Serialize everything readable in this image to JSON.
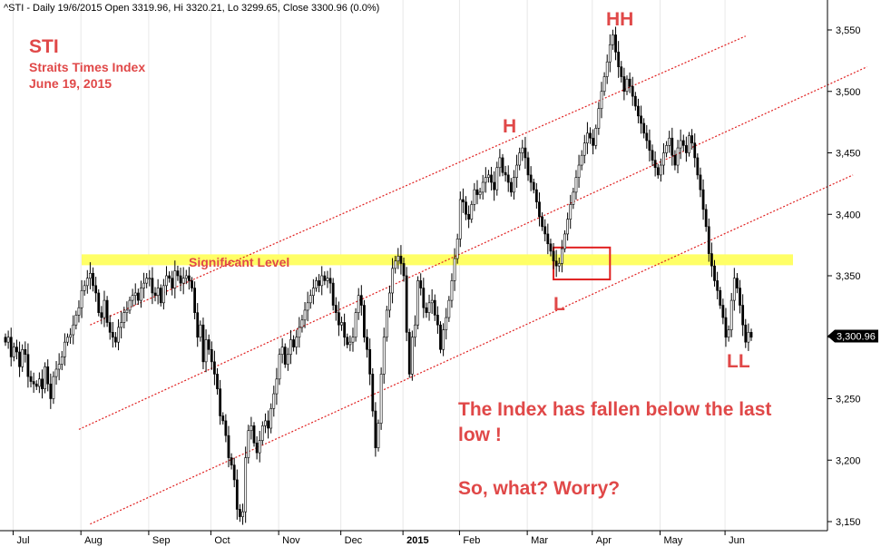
{
  "header": "^STI - Daily 19/6/2015 Open 3319.96, Hi 3320.21, Lo 3299.65, Close 3300.96 (0.0%)",
  "annotations": {
    "title": "STI",
    "subtitle": "Straits Times Index",
    "date": "June 19, 2015",
    "significant_level": "Significant Level",
    "h": "H",
    "hh": "HH",
    "l": "L",
    "ll": "LL",
    "comment_line1": "The Index has fallen below the last",
    "comment_line2": "low !",
    "comment_line3": "So, what? Worry?"
  },
  "last_price_label": "3,300.96",
  "colors": {
    "annotation_red": "#e04848",
    "highlight_yellow": "#ffff66",
    "candle_up": "#ffffff",
    "candle_down": "#000000",
    "channel": "#e02020",
    "grid": "#e8e8e8",
    "price_tag": "#000000"
  },
  "chart_data": {
    "type": "candlestick",
    "ylim": [
      3140,
      3570
    ],
    "y_ticks": [
      {
        "value": 3150,
        "label": "3,150"
      },
      {
        "value": 3200,
        "label": "3,200"
      },
      {
        "value": 3250,
        "label": "3,250"
      },
      {
        "value": 3300,
        "label": "3,300"
      },
      {
        "value": 3350,
        "label": "3,350"
      },
      {
        "value": 3400,
        "label": "3,400"
      },
      {
        "value": 3450,
        "label": "3,450"
      },
      {
        "value": 3500,
        "label": "3,500"
      },
      {
        "value": 3550,
        "label": "3,550"
      }
    ],
    "x_ticks": [
      "Jul",
      "Aug",
      "Sep",
      "Oct",
      "Nov",
      "Dec",
      "2015",
      "Feb",
      "Mar",
      "Apr",
      "May",
      "Jun"
    ],
    "x_tick_index": [
      4,
      28,
      52,
      74,
      98,
      120,
      142,
      162,
      186,
      209,
      233,
      256
    ],
    "close": [
      3296,
      3300,
      3284,
      3292,
      3288,
      3276,
      3290,
      3286,
      3268,
      3264,
      3262,
      3260,
      3266,
      3258,
      3276,
      3262,
      3250,
      3268,
      3274,
      3278,
      3284,
      3296,
      3300,
      3302,
      3310,
      3318,
      3324,
      3338,
      3342,
      3348,
      3352,
      3342,
      3336,
      3320,
      3316,
      3330,
      3312,
      3304,
      3300,
      3296,
      3308,
      3312,
      3320,
      3322,
      3330,
      3334,
      3336,
      3330,
      3340,
      3344,
      3348,
      3348,
      3336,
      3334,
      3340,
      3328,
      3342,
      3350,
      3348,
      3340,
      3354,
      3350,
      3344,
      3348,
      3350,
      3346,
      3340,
      3320,
      3300,
      3310,
      3280,
      3298,
      3290,
      3280,
      3270,
      3258,
      3236,
      3232,
      3220,
      3202,
      3196,
      3184,
      3160,
      3154,
      3158,
      3202,
      3224,
      3228,
      3214,
      3206,
      3216,
      3228,
      3232,
      3226,
      3242,
      3254,
      3266,
      3286,
      3292,
      3278,
      3286,
      3298,
      3292,
      3300,
      3308,
      3314,
      3322,
      3328,
      3334,
      3340,
      3346,
      3342,
      3350,
      3346,
      3348,
      3344,
      3326,
      3320,
      3310,
      3312,
      3300,
      3294,
      3296,
      3300,
      3320,
      3334,
      3326,
      3300,
      3290,
      3270,
      3240,
      3210,
      3230,
      3270,
      3300,
      3322,
      3336,
      3356,
      3362,
      3366,
      3360,
      3350,
      3304,
      3270,
      3300,
      3310,
      3346,
      3340,
      3324,
      3320,
      3328,
      3330,
      3318,
      3310,
      3290,
      3306,
      3316,
      3330,
      3346,
      3364,
      3380,
      3412,
      3410,
      3400,
      3396,
      3408,
      3420,
      3416,
      3418,
      3426,
      3430,
      3432,
      3426,
      3420,
      3438,
      3446,
      3434,
      3432,
      3426,
      3418,
      3430,
      3440,
      3450,
      3454,
      3446,
      3432,
      3426,
      3420,
      3410,
      3398,
      3390,
      3384,
      3376,
      3370,
      3362,
      3358,
      3360,
      3372,
      3384,
      3396,
      3408,
      3418,
      3430,
      3440,
      3448,
      3458,
      3466,
      3462,
      3456,
      3470,
      3486,
      3500,
      3512,
      3524,
      3538,
      3546,
      3532,
      3520,
      3512,
      3500,
      3510,
      3504,
      3496,
      3488,
      3480,
      3474,
      3466,
      3460,
      3452,
      3444,
      3438,
      3432,
      3440,
      3450,
      3456,
      3462,
      3448,
      3440,
      3454,
      3460,
      3456,
      3450,
      3464,
      3458,
      3446,
      3432,
      3420,
      3404,
      3390,
      3368,
      3358,
      3346,
      3338,
      3326,
      3316,
      3300,
      3306,
      3330,
      3348,
      3340,
      3326,
      3310,
      3296,
      3304,
      3300
    ],
    "last_close": 3300.96,
    "significant_level": 3363,
    "channel_lines": [
      {
        "name": "upper",
        "points": [
          [
            30,
            3310
          ],
          [
            262,
            3545
          ]
        ]
      },
      {
        "name": "middle",
        "points": [
          [
            26,
            3225
          ],
          [
            305,
            3520
          ]
        ]
      },
      {
        "name": "lower",
        "points": [
          [
            30,
            3148
          ],
          [
            300,
            3432
          ]
        ]
      }
    ],
    "highlight_box": {
      "from_index": 194,
      "to_index": 214,
      "low": 3347,
      "high": 3373
    }
  }
}
